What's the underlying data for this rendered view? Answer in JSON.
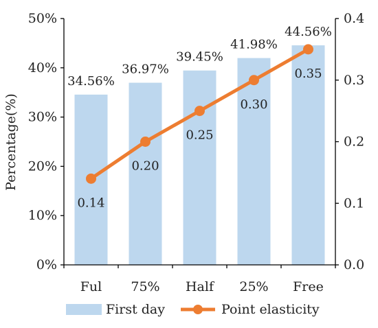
{
  "chart_data": {
    "type": "bar+line",
    "categories": [
      "Ful",
      "75%",
      "Half",
      "25%",
      "Free"
    ],
    "series": [
      {
        "name": "First day",
        "type": "bar",
        "axis": "left",
        "values": [
          34.56,
          36.97,
          39.45,
          41.98,
          44.56
        ],
        "labels": [
          "34.56%",
          "36.97%",
          "39.45%",
          "41.98%",
          "44.56%"
        ],
        "color": "#bdd7ee"
      },
      {
        "name": "Point elasticity",
        "type": "line",
        "axis": "right",
        "values": [
          0.14,
          0.2,
          0.25,
          0.3,
          0.35
        ],
        "labels": [
          "0.14",
          "0.20",
          "0.25",
          "0.30",
          "0.35"
        ],
        "color": "#ed7d31"
      }
    ],
    "ylabel": "Percentage(%)",
    "ylim": [
      0,
      50
    ],
    "yticks": [
      "0%",
      "10%",
      "20%",
      "30%",
      "40%",
      "50%"
    ],
    "y2lim": [
      0,
      0.4
    ],
    "y2ticks": [
      "0.0",
      "0.1",
      "0.2",
      "0.3",
      "0.4"
    ],
    "legend": {
      "position": "bottom"
    },
    "grid": false
  }
}
